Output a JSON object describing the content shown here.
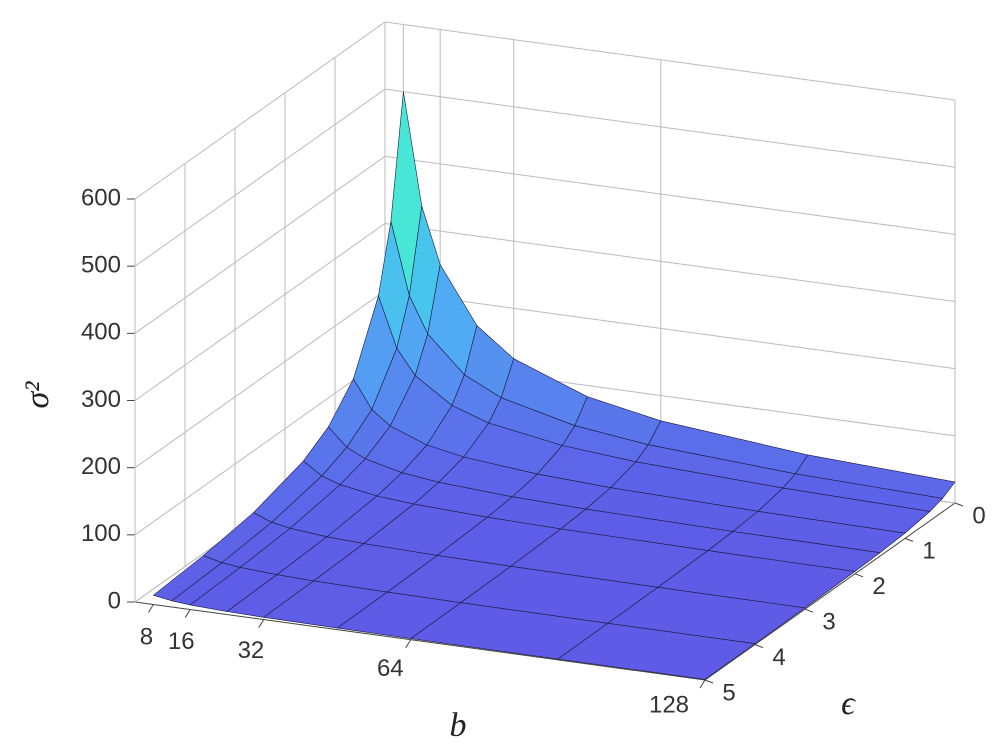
{
  "chart_data": {
    "type": "surface",
    "xlabel": "b",
    "ylabel": "ϵ",
    "zlabel": "σ²",
    "x": [
      8,
      12,
      16,
      24,
      32,
      48,
      64,
      96,
      128
    ],
    "y": [
      0,
      0.25,
      0.5,
      1,
      1.5,
      2,
      3,
      4,
      5
    ],
    "z": [
      [
        500,
        320,
        222.2,
        125,
        80,
        55.6,
        31.3,
        20,
        13.9
      ],
      [
        333.3,
        213.3,
        148.1,
        83.3,
        53.3,
        37,
        20.8,
        13.3,
        9.3
      ],
      [
        250,
        160,
        111.1,
        62.5,
        40,
        27.8,
        15.6,
        10,
        6.9
      ],
      [
        166.7,
        106.7,
        74.1,
        41.7,
        26.7,
        18.5,
        10.4,
        6.7,
        4.6
      ],
      [
        125,
        80,
        55.6,
        31.3,
        20,
        13.9,
        7.8,
        5,
        3.5
      ],
      [
        83.3,
        53.3,
        37,
        20.8,
        13.3,
        9.3,
        5.2,
        3.3,
        2.3
      ],
      [
        62.5,
        40,
        27.8,
        15.6,
        10,
        6.9,
        3.9,
        2.5,
        1.7
      ],
      [
        41.7,
        26.7,
        18.5,
        10.4,
        6.7,
        4.6,
        2.6,
        1.7,
        1.2
      ],
      [
        31.3,
        20,
        13.9,
        7.8,
        5,
        3.5,
        2,
        1.3,
        0.9
      ]
    ],
    "xlim": [
      4,
      128
    ],
    "xticks": [
      8,
      16,
      32,
      64,
      128
    ],
    "ylim": [
      0,
      5
    ],
    "yticks": [
      0,
      1,
      2,
      3,
      4,
      5
    ],
    "zlim": [
      0,
      600
    ],
    "zticks": [
      0,
      100,
      200,
      300,
      400,
      500,
      600
    ],
    "grid": true
  }
}
